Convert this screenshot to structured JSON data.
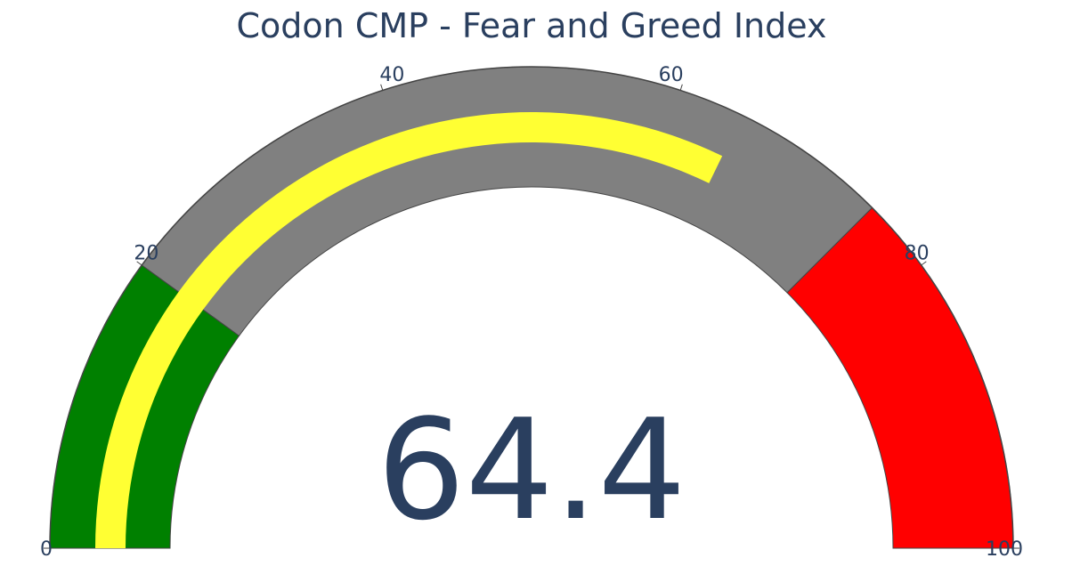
{
  "chart_data": {
    "type": "gauge",
    "title": "Codon CMP - Fear and Greed Index",
    "value": 64.4,
    "value_label": "64.4",
    "range": [
      0,
      100
    ],
    "ticks": [
      {
        "value": 0,
        "label": "0"
      },
      {
        "value": 20,
        "label": "20"
      },
      {
        "value": 40,
        "label": "40"
      },
      {
        "value": 60,
        "label": "60"
      },
      {
        "value": 80,
        "label": "80"
      },
      {
        "value": 100,
        "label": "100"
      }
    ],
    "steps": [
      {
        "range": [
          0,
          20
        ],
        "color": "#008000"
      },
      {
        "range": [
          20,
          75
        ],
        "color": "#808080"
      },
      {
        "range": [
          75,
          100
        ],
        "color": "#ff0000"
      }
    ],
    "bar_color": "#ffff33",
    "step_border_color": "#444444"
  }
}
